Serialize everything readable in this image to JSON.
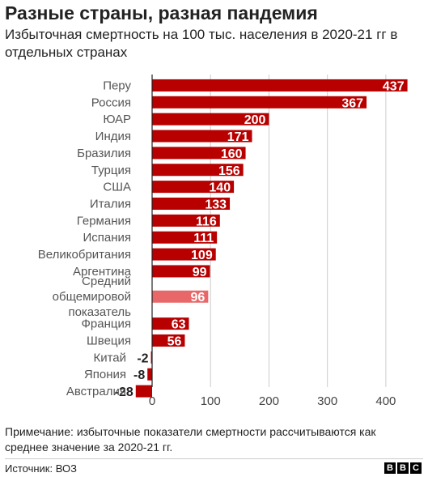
{
  "header": {
    "title": "Разные страны, разная пандемия",
    "subtitle": "Избыточная смертность на 100 тыс. населения в 2020-21 гг в отдельных странах"
  },
  "footer": {
    "note": "Примечание: избыточные показатели смертности рассчитываются как среднее значение за 2020-21 гг.",
    "source": "Источник: ВОЗ",
    "logo": [
      "B",
      "B",
      "C"
    ]
  },
  "chart_data": {
    "type": "bar",
    "orientation": "horizontal",
    "categories": [
      "Перу",
      "Россия",
      "ЮАР",
      "Индия",
      "Бразилия",
      "Турция",
      "США",
      "Италия",
      "Германия",
      "Испания",
      "Великобритания",
      "Аргентина",
      "Средний общемировой показатель",
      "Франция",
      "Швеция",
      "Китай",
      "Япония",
      "Австралия"
    ],
    "category_lines": [
      [
        "Перу"
      ],
      [
        "Россия"
      ],
      [
        "ЮАР"
      ],
      [
        "Индия"
      ],
      [
        "Бразилия"
      ],
      [
        "Турция"
      ],
      [
        "США"
      ],
      [
        "Италия"
      ],
      [
        "Германия"
      ],
      [
        "Испания"
      ],
      [
        "Великобритания"
      ],
      [
        "Аргентина"
      ],
      [
        "Средний",
        "общемировой",
        "показатель"
      ],
      [
        "Франция"
      ],
      [
        "Швеция"
      ],
      [
        "Китай"
      ],
      [
        "Япония"
      ],
      [
        "Австралия"
      ]
    ],
    "values": [
      437,
      367,
      200,
      171,
      160,
      156,
      140,
      133,
      116,
      111,
      109,
      99,
      96,
      63,
      56,
      -2,
      -8,
      -28
    ],
    "data_labels": [
      "437",
      "367",
      "200",
      "171",
      "160",
      "156",
      "140",
      "133",
      "116",
      "111",
      "109",
      "99",
      "96",
      "63",
      "56",
      "-2",
      "-8",
      "-28"
    ],
    "highlight_index": 12,
    "xlim": [
      -28,
      455
    ],
    "xticks": [
      0,
      100,
      200,
      300,
      400
    ],
    "xtick_labels": [
      "0",
      "100",
      "200",
      "300",
      "400"
    ],
    "grid": true,
    "colors": {
      "bar": "#b80000",
      "highlight": "#e8686a",
      "grid": "#cccccc",
      "axis": "#222222"
    }
  }
}
